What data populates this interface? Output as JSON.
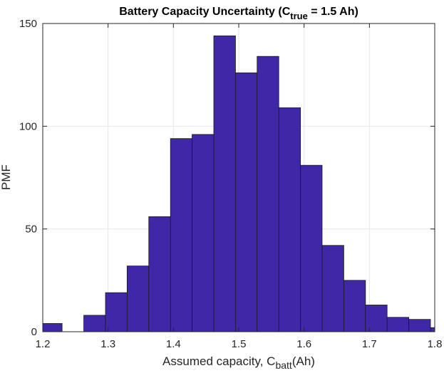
{
  "chart_data": {
    "type": "bar",
    "title": {
      "main": "Battery Capacity Uncertainty (C",
      "sub": "true",
      "tail": " = 1.5 Ah)"
    },
    "xlabel": {
      "main": "Assumed capacity, C",
      "sub": "batt",
      "tail": "(Ah)"
    },
    "ylabel": "PMF",
    "xlim": [
      1.2,
      1.8
    ],
    "ylim": [
      0,
      150
    ],
    "xticks": [
      "1.2",
      "1.3",
      "1.4",
      "1.5",
      "1.6",
      "1.7",
      "1.8"
    ],
    "yticks": [
      "0",
      "50",
      "100",
      "150"
    ],
    "grid": true,
    "bar_color": "#3f27a8",
    "bins": [
      {
        "x0": 1.1965,
        "x1": 1.2296,
        "value": 4
      },
      {
        "x0": 1.2296,
        "x1": 1.2628,
        "value": 0
      },
      {
        "x0": 1.2628,
        "x1": 1.296,
        "value": 8
      },
      {
        "x0": 1.296,
        "x1": 1.3291,
        "value": 19
      },
      {
        "x0": 1.3291,
        "x1": 1.3623,
        "value": 32
      },
      {
        "x0": 1.3623,
        "x1": 1.3955,
        "value": 56
      },
      {
        "x0": 1.3955,
        "x1": 1.4286,
        "value": 94
      },
      {
        "x0": 1.4286,
        "x1": 1.4618,
        "value": 96
      },
      {
        "x0": 1.4618,
        "x1": 1.495,
        "value": 144
      },
      {
        "x0": 1.495,
        "x1": 1.5281,
        "value": 126
      },
      {
        "x0": 1.5281,
        "x1": 1.5613,
        "value": 134
      },
      {
        "x0": 1.5613,
        "x1": 1.5945,
        "value": 109
      },
      {
        "x0": 1.5945,
        "x1": 1.6276,
        "value": 81
      },
      {
        "x0": 1.6276,
        "x1": 1.6608,
        "value": 42
      },
      {
        "x0": 1.6608,
        "x1": 1.694,
        "value": 25
      },
      {
        "x0": 1.694,
        "x1": 1.7271,
        "value": 13
      },
      {
        "x0": 1.7271,
        "x1": 1.7603,
        "value": 7
      },
      {
        "x0": 1.7603,
        "x1": 1.7935,
        "value": 6
      },
      {
        "x0": 1.7935,
        "x1": 1.8266,
        "value": 2
      }
    ]
  }
}
